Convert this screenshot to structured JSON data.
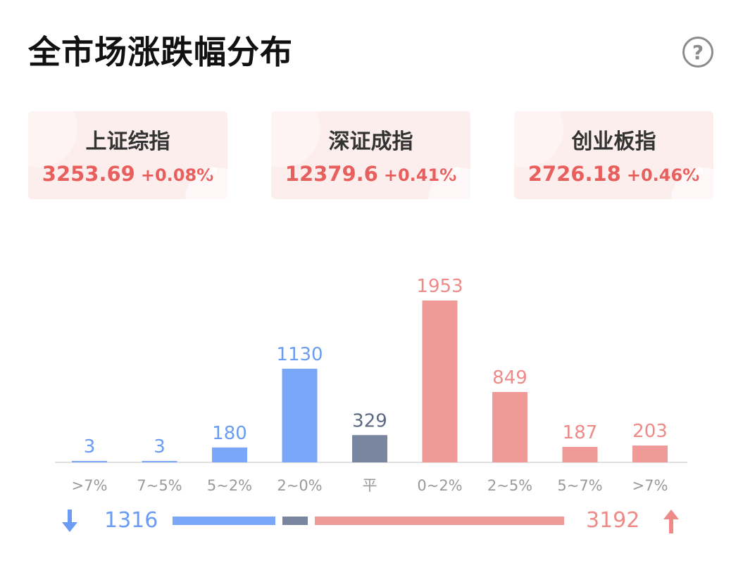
{
  "header": {
    "title": "全市场涨跌幅分布",
    "help_icon": "help-circle-icon",
    "help_label": "?"
  },
  "indices": [
    {
      "name": "上证综指",
      "value": "3253.69",
      "change": "+0.08%"
    },
    {
      "name": "深证成指",
      "value": "12379.6",
      "change": "+0.41%"
    },
    {
      "name": "创业板指",
      "value": "2726.18",
      "change": "+0.46%"
    }
  ],
  "colors": {
    "down": "#7aa7f7",
    "flat": "#7a869f",
    "up": "#ef9a97",
    "up_text": "#e8605e",
    "axis": "#e0e0e0",
    "tick": "#9a9a9a"
  },
  "chart_data": {
    "type": "bar",
    "categories": [
      ">7%",
      "7~5%",
      "5~2%",
      "2~0%",
      "平",
      "0~2%",
      "2~5%",
      "5~7%",
      ">7%"
    ],
    "values": [
      3,
      3,
      180,
      1130,
      329,
      1953,
      849,
      187,
      203
    ],
    "groups": [
      "down",
      "down",
      "down",
      "down",
      "flat",
      "up",
      "up",
      "up",
      "up"
    ],
    "ylim": [
      0,
      1953
    ]
  },
  "summary": {
    "down_count": "1316",
    "up_count": "3192",
    "flat_count": 329,
    "down_icon": "arrow-down-icon",
    "up_icon": "arrow-up-icon"
  }
}
